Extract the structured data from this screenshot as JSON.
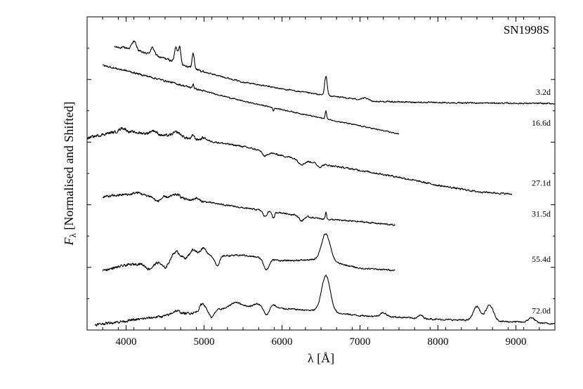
{
  "chart_data": {
    "type": "line",
    "title": "SN1998S",
    "xlabel": "λ [Å]",
    "ylabel": "F_λ [Normalised and Shifted]",
    "ylabel_parts": {
      "symbol": "F",
      "subscript": "λ",
      "rest": " [Normalised and Shifted]"
    },
    "xlim": [
      3500,
      9500
    ],
    "ylim": [
      0,
      100
    ],
    "x_ticks": [
      4000,
      5000,
      6000,
      7000,
      8000,
      9000
    ],
    "x_tick_labels": [
      "4000",
      "5000",
      "6000",
      "7000",
      "8000",
      "9000"
    ],
    "grid": false,
    "legend": "none",
    "series": [
      {
        "name": "3.2d",
        "color": "#000000",
        "wave_range": [
          3850,
          9500
        ],
        "continuum": [
          [
            3850,
            90.4
          ],
          [
            4000,
            90.1
          ],
          [
            4500,
            86.7
          ],
          [
            5000,
            82.4
          ],
          [
            5500,
            79.2
          ],
          [
            6000,
            77.0
          ],
          [
            6500,
            75.1
          ],
          [
            7000,
            73.6
          ],
          [
            7200,
            73.0
          ],
          [
            8000,
            72.6
          ],
          [
            9000,
            72.4
          ],
          [
            9500,
            72.3
          ]
        ],
        "lines": [
          [
            4102,
            2.8,
            28
          ],
          [
            4340,
            2.3,
            26
          ],
          [
            4640,
            4.8,
            18
          ],
          [
            4686,
            5.2,
            16
          ],
          [
            4861,
            4.8,
            14
          ],
          [
            6563,
            6.2,
            16
          ],
          [
            7065,
            0.6,
            40
          ]
        ],
        "noise": 0.35
      },
      {
        "name": "16.6d",
        "color": "#000000",
        "wave_range": [
          3700,
          7500
        ],
        "continuum": [
          [
            3700,
            84.5
          ],
          [
            4000,
            82.8
          ],
          [
            4500,
            79.6
          ],
          [
            5000,
            76.3
          ],
          [
            5500,
            73.1
          ],
          [
            6000,
            70.4
          ],
          [
            6500,
            67.7
          ],
          [
            7000,
            65.2
          ],
          [
            7500,
            62.6
          ]
        ],
        "lines": [
          [
            4861,
            1.5,
            8
          ],
          [
            5890,
            -1.0,
            8
          ],
          [
            6563,
            2.5,
            10
          ]
        ],
        "noise": 0.3
      },
      {
        "name": "27.1d",
        "color": "#000000",
        "wave_range": [
          3500,
          8950
        ],
        "continuum": [
          [
            3500,
            61.3
          ],
          [
            3800,
            63.0
          ],
          [
            4000,
            63.4
          ],
          [
            4500,
            62.1
          ],
          [
            5000,
            60.6
          ],
          [
            5500,
            58.6
          ],
          [
            6000,
            55.7
          ],
          [
            6500,
            53.0
          ],
          [
            7000,
            51.0
          ],
          [
            7500,
            48.8
          ],
          [
            8000,
            46.2
          ],
          [
            8500,
            44.2
          ],
          [
            8950,
            43.4
          ]
        ],
        "lines": [
          [
            3950,
            1.2,
            40
          ],
          [
            4350,
            1.2,
            40
          ],
          [
            4650,
            1.5,
            50
          ],
          [
            4861,
            1.2,
            15
          ],
          [
            5000,
            0.8,
            30
          ],
          [
            5780,
            -1.5,
            30
          ],
          [
            6250,
            -1.4,
            40
          ],
          [
            6480,
            -1.0,
            30
          ]
        ],
        "noise": 0.45
      },
      {
        "name": "31.5d",
        "color": "#000000",
        "wave_range": [
          3700,
          7450
        ],
        "continuum": [
          [
            3700,
            42.5
          ],
          [
            4000,
            43.3
          ],
          [
            4500,
            42.5
          ],
          [
            5000,
            41.0
          ],
          [
            5500,
            39.0
          ],
          [
            6000,
            37.4
          ],
          [
            6500,
            35.5
          ],
          [
            7000,
            34.6
          ],
          [
            7450,
            33.5
          ]
        ],
        "lines": [
          [
            4150,
            0.8,
            50
          ],
          [
            4400,
            -1.5,
            40
          ],
          [
            4650,
            1.2,
            50
          ],
          [
            4900,
            0.8,
            30
          ],
          [
            5780,
            -1.8,
            25
          ],
          [
            5890,
            -2.2,
            15
          ],
          [
            6250,
            -1.6,
            30
          ],
          [
            6563,
            2.5,
            8
          ]
        ],
        "noise": 0.4
      },
      {
        "name": "55.4d",
        "color": "#000000",
        "wave_range": [
          3700,
          7450
        ],
        "continuum": [
          [
            3700,
            19.0
          ],
          [
            4000,
            20.7
          ],
          [
            4500,
            22.1
          ],
          [
            5000,
            23.5
          ],
          [
            5500,
            23.9
          ],
          [
            6000,
            22.1
          ],
          [
            6500,
            22.5
          ],
          [
            7000,
            19.7
          ],
          [
            7450,
            19.1
          ]
        ],
        "lines": [
          [
            4300,
            -2.0,
            50
          ],
          [
            4500,
            -2.2,
            40
          ],
          [
            4640,
            2.5,
            50
          ],
          [
            4860,
            2.6,
            40
          ],
          [
            4990,
            2.8,
            40
          ],
          [
            5170,
            -3.0,
            30
          ],
          [
            5800,
            -3.5,
            35
          ],
          [
            6563,
            8.5,
            55
          ]
        ],
        "noise": 0.4
      },
      {
        "name": "72.0d",
        "color": "#000000",
        "wave_range": [
          3600,
          9500
        ],
        "continuum": [
          [
            3600,
            1.7
          ],
          [
            4000,
            2.9
          ],
          [
            4500,
            4.5
          ],
          [
            5000,
            5.9
          ],
          [
            5500,
            7.7
          ],
          [
            6000,
            6.9
          ],
          [
            6500,
            6.0
          ],
          [
            7000,
            4.6
          ],
          [
            7500,
            4.1
          ],
          [
            8000,
            3.4
          ],
          [
            8500,
            3.0
          ],
          [
            9000,
            2.6
          ],
          [
            9500,
            2.0
          ]
        ],
        "lines": [
          [
            4640,
            1.2,
            50
          ],
          [
            4980,
            2.6,
            35
          ],
          [
            5100,
            -2.2,
            30
          ],
          [
            5400,
            1.5,
            60
          ],
          [
            5680,
            1.0,
            40
          ],
          [
            5800,
            -2.5,
            30
          ],
          [
            5890,
            1.0,
            30
          ],
          [
            6563,
            11.5,
            55
          ],
          [
            7300,
            1.2,
            40
          ],
          [
            7780,
            1.0,
            30
          ],
          [
            8498,
            4.5,
            45
          ],
          [
            8662,
            5.0,
            50
          ],
          [
            9200,
            1.6,
            40
          ]
        ],
        "noise": 0.4
      }
    ]
  }
}
